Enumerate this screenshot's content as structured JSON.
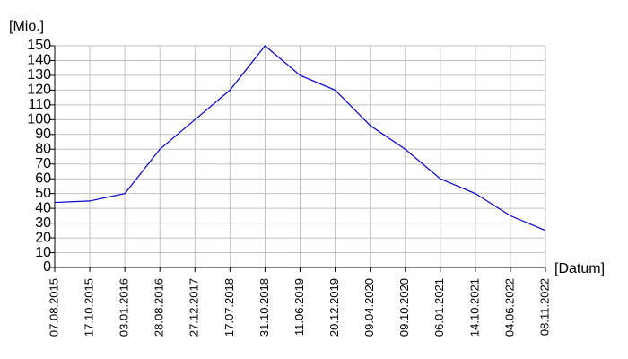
{
  "chart_data": {
    "type": "line",
    "y_label": "[Mio.]",
    "x_label": "[Datum]",
    "categories": [
      "07.08.2015",
      "17.10.2015",
      "03.01.2016",
      "28.08.2016",
      "27.12.2017",
      "17.07.2018",
      "31.10.2018",
      "11.06.2019",
      "20.12.2019",
      "09.04.2020",
      "09.10.2020",
      "06.01.2021",
      "14.10.2021",
      "04.06.2022",
      "08.11.2022"
    ],
    "series": [
      {
        "color": "#0000cc",
        "values": [
          44,
          45,
          50,
          80,
          100,
          120,
          150,
          130,
          120,
          96,
          80,
          60,
          50,
          35,
          25
        ]
      }
    ],
    "ylim": [
      0,
      150
    ],
    "yticks": [
      0,
      10,
      20,
      30,
      40,
      50,
      60,
      70,
      80,
      90,
      100,
      110,
      120,
      130,
      140,
      150
    ],
    "grid": true,
    "grid_color": "#c0c0c0"
  }
}
